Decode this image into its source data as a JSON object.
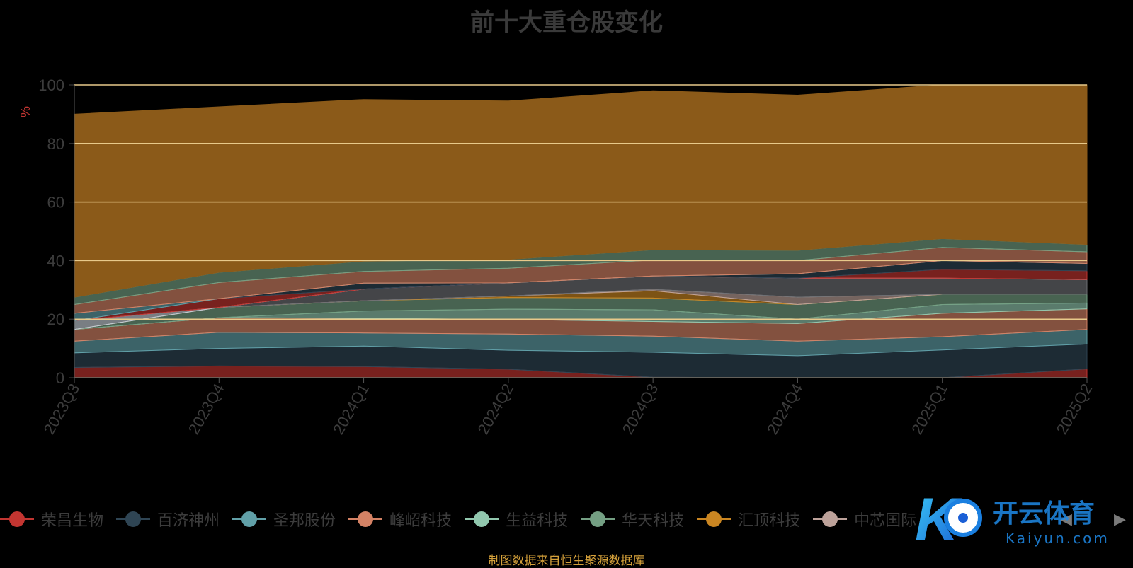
{
  "chart_data": {
    "type": "area",
    "stacked": true,
    "title": "前十大重仓股变化",
    "ylabel": "%",
    "xlabel": "",
    "ylim": [
      0,
      100
    ],
    "yticks": [
      0,
      20,
      40,
      60,
      80,
      100
    ],
    "categories": [
      "2023Q3",
      "2023Q4",
      "2024Q1",
      "2024Q2",
      "2024Q3",
      "2024Q4",
      "2025Q1",
      "2025Q2"
    ],
    "grid": true,
    "legend_position": "bottom",
    "series": [
      {
        "name": "荣昌生物",
        "color": "#c23531",
        "values": [
          3.5,
          4.0,
          3.8,
          2.9,
          0.2,
          0.0,
          0.0,
          3.0
        ]
      },
      {
        "name": "百济神州",
        "color": "#2f4554",
        "values": [
          5.0,
          6.0,
          7.0,
          6.5,
          8.5,
          7.5,
          9.5,
          8.5
        ]
      },
      {
        "name": "圣邦股份",
        "color": "#61a0a8",
        "values": [
          4.0,
          5.5,
          4.5,
          5.5,
          5.5,
          5.0,
          4.5,
          5.0
        ]
      },
      {
        "name": "峰岹科技",
        "color": "#d48265",
        "values": [
          4.0,
          5.0,
          5.0,
          5.0,
          5.0,
          6.0,
          8.0,
          7.0
        ]
      },
      {
        "name": "生益科技",
        "color": "#91c7ae",
        "values": [
          0.0,
          0.0,
          2.5,
          3.5,
          4.0,
          1.5,
          3.0,
          2.0
        ]
      },
      {
        "name": "华天科技",
        "color": "#749f83",
        "values": [
          0.0,
          3.5,
          3.5,
          4.0,
          4.0,
          5.0,
          3.5,
          3.0
        ]
      },
      {
        "name": "汇顶科技",
        "color": "#ca8622",
        "values": [
          0.0,
          0.0,
          0.0,
          0.5,
          2.5,
          0.0,
          0.0,
          0.0
        ]
      },
      {
        "name": "中芯国际",
        "color": "#bda29a",
        "values": [
          0.0,
          0.0,
          0.0,
          0.0,
          0.5,
          2.5,
          0.0,
          0.0
        ]
      },
      {
        "name": "",
        "color": "#6e7074",
        "values": [
          0.0,
          0.0,
          4.0,
          4.5,
          4.5,
          6.5,
          5.5,
          5.0
        ]
      },
      {
        "name": "",
        "color": "#c4ccd3",
        "values": [
          3.0,
          0.0,
          0.0,
          0.0,
          0.0,
          0.0,
          0.0,
          0.0
        ]
      },
      {
        "name": "",
        "color": "#c23531",
        "values": [
          0.0,
          3.0,
          0.0,
          0.0,
          0.0,
          0.0,
          3.0,
          3.0
        ]
      },
      {
        "name": "",
        "color": "#2f4554",
        "values": [
          0.0,
          0.0,
          2.0,
          0.0,
          0.0,
          1.5,
          3.0,
          2.5
        ]
      },
      {
        "name": "",
        "color": "#61a0a8",
        "values": [
          2.5,
          0.0,
          0.0,
          0.0,
          0.0,
          0.0,
          0.0,
          0.0
        ]
      },
      {
        "name": "",
        "color": "#d48265",
        "values": [
          3.0,
          5.5,
          4.0,
          5.0,
          5.5,
          4.5,
          4.5,
          4.0
        ]
      },
      {
        "name": "",
        "color": "#749f83",
        "values": [
          2.5,
          3.5,
          3.5,
          3.0,
          3.5,
          3.5,
          3.0,
          2.5
        ]
      },
      {
        "name": "",
        "color": "#8b5a19",
        "values": [
          62.5,
          56.5,
          55.2,
          54.1,
          54.3,
          53.0,
          52.5,
          54.5
        ]
      }
    ]
  },
  "legend": {
    "items": [
      {
        "label": "荣昌生物",
        "color": "#c23531"
      },
      {
        "label": "百济神州",
        "color": "#2f4554"
      },
      {
        "label": "圣邦股份",
        "color": "#61a0a8"
      },
      {
        "label": "峰岹科技",
        "color": "#d48265"
      },
      {
        "label": "生益科技",
        "color": "#91c7ae"
      },
      {
        "label": "华天科技",
        "color": "#749f83"
      },
      {
        "label": "汇顶科技",
        "color": "#ca8622"
      },
      {
        "label": "中芯国际",
        "color": "#bda29a"
      }
    ],
    "prev_icon": "triangle-left-icon",
    "next_icon": "triangle-right-icon"
  },
  "source_note": "制图数据来自恒生聚源数据库",
  "watermark": {
    "brand": "开云体育",
    "sub": "Kaiyun.com"
  }
}
